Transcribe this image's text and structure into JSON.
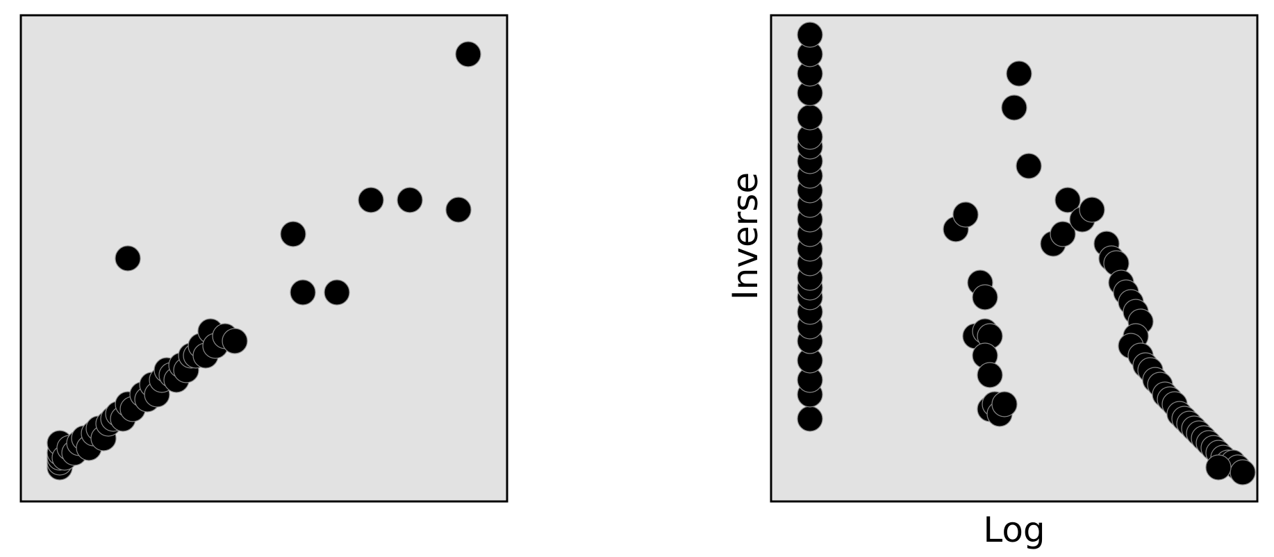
{
  "chart_data": [
    {
      "type": "scatter",
      "xlabel": "",
      "ylabel": "",
      "ticks": false,
      "grid": false,
      "xlim": [
        0,
        1
      ],
      "ylim": [
        0,
        1
      ],
      "series": [
        {
          "x": [
            0.08,
            0.08,
            0.08,
            0.08,
            0.08,
            0.09,
            0.1,
            0.11,
            0.12,
            0.13,
            0.14,
            0.15,
            0.16,
            0.17,
            0.18,
            0.19,
            0.2,
            0.21,
            0.22,
            0.23,
            0.25,
            0.26,
            0.27,
            0.28,
            0.29,
            0.3,
            0.31,
            0.32,
            0.33,
            0.34,
            0.35,
            0.36,
            0.37,
            0.38,
            0.39,
            0.4,
            0.42,
            0.44,
            0.22,
            0.56,
            0.58,
            0.65,
            0.72,
            0.8,
            0.9,
            0.92
          ],
          "y": [
            0.07,
            0.08,
            0.09,
            0.1,
            0.12,
            0.09,
            0.11,
            0.1,
            0.12,
            0.13,
            0.11,
            0.14,
            0.15,
            0.13,
            0.16,
            0.17,
            0.18,
            0.17,
            0.2,
            0.19,
            0.22,
            0.21,
            0.24,
            0.22,
            0.25,
            0.27,
            0.26,
            0.25,
            0.28,
            0.27,
            0.3,
            0.3,
            0.32,
            0.3,
            0.35,
            0.32,
            0.34,
            0.33,
            0.5,
            0.55,
            0.43,
            0.43,
            0.62,
            0.62,
            0.6,
            0.92
          ]
        }
      ]
    },
    {
      "type": "scatter",
      "xlabel": "Log",
      "ylabel": "Inverse",
      "ticks": false,
      "grid": false,
      "xlim": [
        0,
        1
      ],
      "ylim": [
        0,
        1
      ],
      "series": [
        {
          "x": [
            0.08,
            0.08,
            0.08,
            0.08,
            0.08,
            0.08,
            0.08,
            0.08,
            0.08,
            0.08,
            0.08,
            0.08,
            0.08,
            0.08,
            0.08,
            0.08,
            0.08,
            0.08,
            0.08,
            0.08,
            0.08,
            0.08,
            0.08,
            0.08,
            0.08,
            0.38,
            0.4,
            0.43,
            0.44,
            0.42,
            0.44,
            0.45,
            0.44,
            0.45,
            0.46,
            0.45,
            0.46,
            0.47,
            0.48,
            0.51,
            0.5,
            0.53,
            0.58,
            0.6,
            0.61,
            0.64,
            0.66,
            0.69,
            0.7,
            0.71,
            0.72,
            0.73,
            0.74,
            0.75,
            0.76,
            0.75,
            0.74,
            0.76,
            0.77,
            0.78,
            0.79,
            0.8,
            0.81,
            0.82,
            0.83,
            0.84,
            0.85,
            0.86,
            0.87,
            0.88,
            0.89,
            0.9,
            0.91,
            0.92,
            0.93,
            0.94,
            0.95,
            0.96,
            0.97,
            0.92
          ],
          "y": [
            0.17,
            0.22,
            0.25,
            0.29,
            0.33,
            0.36,
            0.39,
            0.42,
            0.44,
            0.46,
            0.49,
            0.52,
            0.55,
            0.58,
            0.61,
            0.64,
            0.67,
            0.7,
            0.73,
            0.75,
            0.79,
            0.84,
            0.88,
            0.92,
            0.96,
            0.56,
            0.59,
            0.45,
            0.42,
            0.34,
            0.35,
            0.34,
            0.3,
            0.26,
            0.2,
            0.19,
            0.2,
            0.18,
            0.2,
            0.88,
            0.81,
            0.69,
            0.53,
            0.55,
            0.62,
            0.58,
            0.6,
            0.53,
            0.5,
            0.49,
            0.45,
            0.43,
            0.41,
            0.39,
            0.37,
            0.34,
            0.32,
            0.3,
            0.28,
            0.27,
            0.25,
            0.24,
            0.22,
            0.21,
            0.2,
            0.18,
            0.17,
            0.16,
            0.15,
            0.14,
            0.13,
            0.12,
            0.11,
            0.1,
            0.09,
            0.08,
            0.08,
            0.07,
            0.06,
            0.07
          ]
        }
      ]
    }
  ]
}
